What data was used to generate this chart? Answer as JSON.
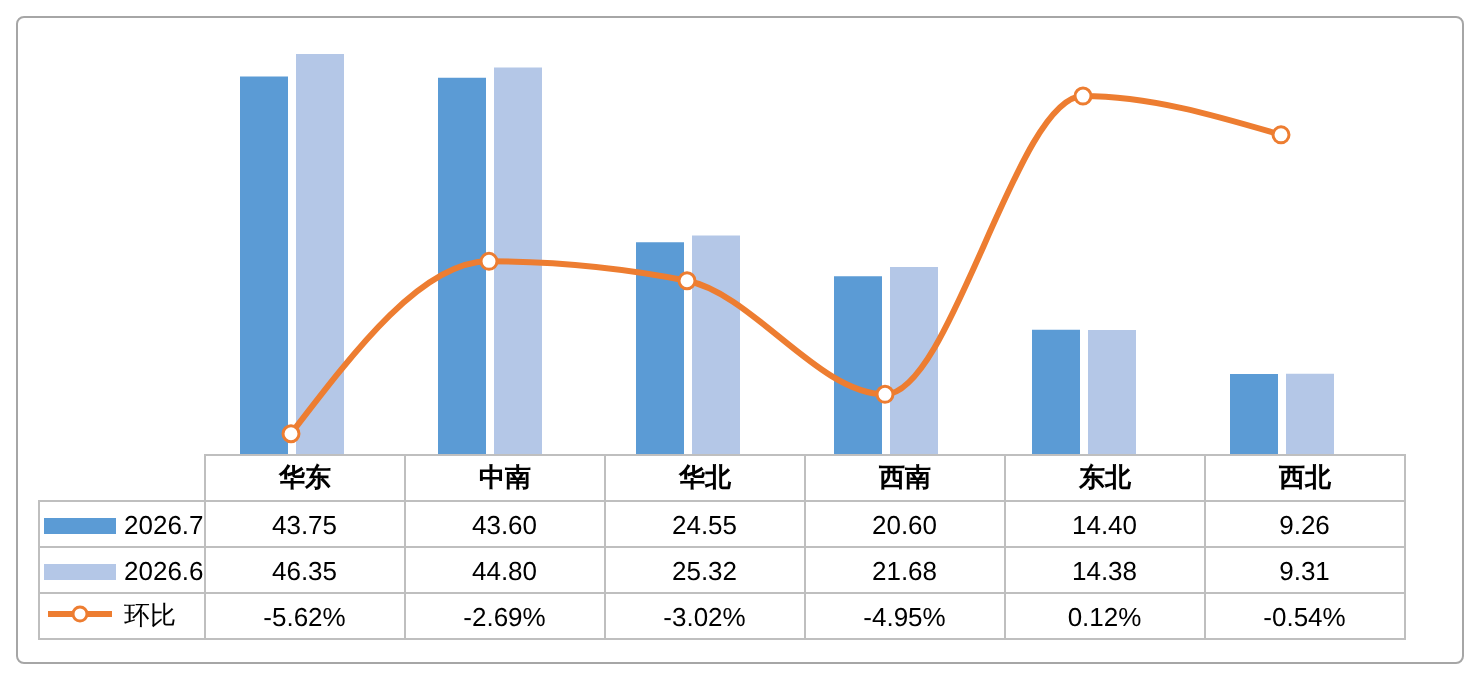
{
  "chart_data": {
    "type": "bar",
    "categories": [
      "华东",
      "中南",
      "华北",
      "西南",
      "东北",
      "西北"
    ],
    "series": [
      {
        "name": "2026.7",
        "color": "#5b9bd5",
        "values": [
          43.75,
          43.6,
          24.55,
          20.6,
          14.4,
          9.26
        ],
        "value_labels": [
          "43.75",
          "43.60",
          "24.55",
          "20.60",
          "14.40",
          "9.26"
        ]
      },
      {
        "name": "2026.6",
        "color": "#b4c7e7",
        "values": [
          46.35,
          44.8,
          25.32,
          21.68,
          14.38,
          9.31
        ],
        "value_labels": [
          "46.35",
          "44.80",
          "25.32",
          "21.68",
          "14.38",
          "9.31"
        ]
      },
      {
        "name": "环比",
        "type": "line",
        "axis": "y2",
        "color": "#ed7d31",
        "values": [
          -5.62,
          -2.69,
          -3.02,
          -4.95,
          0.12,
          -0.54
        ],
        "value_labels": [
          "-5.62%",
          "-2.69%",
          "-3.02%",
          "-4.95%",
          "0.12%",
          "-0.54%"
        ]
      }
    ],
    "legend": "left",
    "marker": "circle",
    "grid": false
  }
}
